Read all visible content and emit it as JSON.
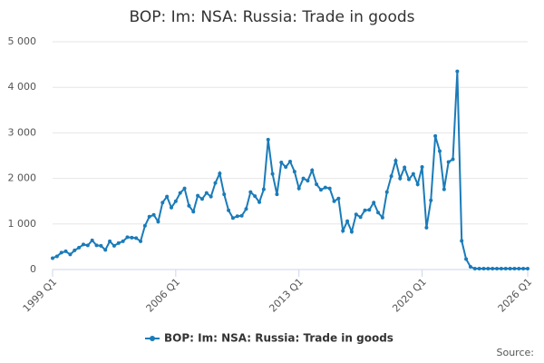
{
  "chart_data": {
    "type": "line",
    "title": "BOP: Im: NSA: Russia: Trade in goods",
    "source": "Source:",
    "categories": [
      "1999 Q1",
      null,
      null,
      null,
      null,
      null,
      null,
      null,
      null,
      null,
      null,
      null,
      null,
      null,
      null,
      null,
      null,
      null,
      null,
      null,
      null,
      null,
      null,
      null,
      null,
      null,
      null,
      null,
      "2006 Q1",
      null,
      null,
      null,
      null,
      null,
      null,
      null,
      null,
      null,
      null,
      null,
      null,
      null,
      null,
      null,
      null,
      null,
      null,
      null,
      null,
      null,
      null,
      null,
      null,
      null,
      null,
      null,
      "2013 Q1",
      null,
      null,
      null,
      null,
      null,
      null,
      null,
      null,
      null,
      null,
      null,
      null,
      null,
      null,
      null,
      null,
      null,
      null,
      null,
      null,
      null,
      null,
      null,
      null,
      null,
      null,
      null,
      "2020 Q1",
      null,
      null,
      null,
      null,
      null,
      null,
      null,
      null,
      null,
      null,
      null,
      null,
      null,
      null,
      null,
      null,
      null,
      null,
      null,
      null,
      null,
      null,
      null,
      "2026 Q1"
    ],
    "series": [
      {
        "name": "BOP: Im: NSA: Russia: Trade in goods",
        "color": "#1a7bb9",
        "values": [
          250,
          290,
          370,
          400,
          330,
          420,
          480,
          550,
          530,
          640,
          530,
          520,
          430,
          620,
          520,
          580,
          620,
          710,
          700,
          690,
          620,
          960,
          1160,
          1200,
          1050,
          1470,
          1600,
          1360,
          1500,
          1680,
          1780,
          1400,
          1270,
          1620,
          1550,
          1680,
          1600,
          1900,
          2110,
          1650,
          1300,
          1130,
          1170,
          1180,
          1330,
          1700,
          1610,
          1480,
          1760,
          2850,
          2100,
          1650,
          2350,
          2250,
          2370,
          2150,
          1780,
          2000,
          1950,
          2180,
          1870,
          1750,
          1800,
          1780,
          1500,
          1560,
          850,
          1060,
          830,
          1210,
          1150,
          1300,
          1310,
          1470,
          1250,
          1140,
          1700,
          2050,
          2390,
          2000,
          2240,
          1980,
          2100,
          1870,
          2250,
          920,
          1520,
          2930,
          2600,
          1760,
          2360,
          2420,
          4350,
          630,
          230,
          60,
          20,
          20,
          20,
          20,
          20,
          20,
          20,
          20,
          20,
          20,
          20,
          20,
          20
        ]
      }
    ],
    "ylim": [
      0,
      5000
    ],
    "yticks": [
      0,
      {
        "value": 1000,
        "label": "1 000"
      },
      {
        "value": 2000,
        "label": "2 000"
      },
      {
        "value": 3000,
        "label": "3 000"
      },
      {
        "value": 4000,
        "label": "4 000"
      },
      {
        "value": 5000,
        "label": "5 000"
      }
    ],
    "grid": true
  }
}
